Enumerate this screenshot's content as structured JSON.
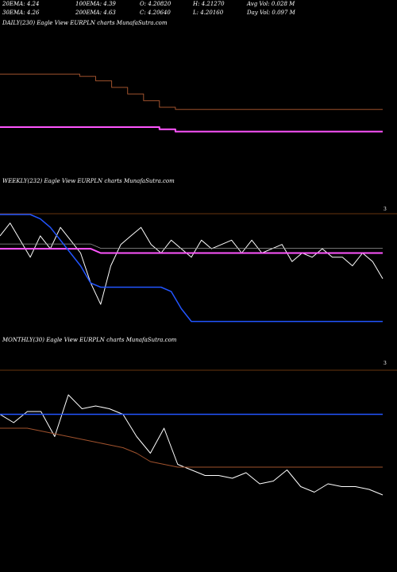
{
  "header": {
    "row1": [
      "20EMA: 4.24",
      "100EMA: 4.39",
      "O: 4.20820",
      "H: 4.21270",
      "Avg Vol: 0.028  M"
    ],
    "row2": [
      "30EMA: 4.26",
      "200EMA: 4.63",
      "C: 4.20640",
      "L: 4.20160",
      "Day Vol: 0.097 M"
    ]
  },
  "panels": {
    "daily_title": "DAILY(230) Eagle  View  EURPLN  charts MunafaSutra.com",
    "weekly_title": "WEEKLY(232) Eagle  View  EURPLN  charts MunafaSutra.com",
    "monthly_title": "MONTHLY(30) Eagle  View  EURPLN  charts MunafaSutra.com",
    "weekly_tick": "3",
    "monthly_tick": "3"
  },
  "colors": {
    "background": "#000000",
    "price": "#ffffff",
    "ema_magenta": "#ff55ff",
    "ema_blue": "#2255ff",
    "ema_brown": "#a0522d",
    "ema_gray": "#999999",
    "separator": "#8b4513"
  },
  "chart_data": [
    {
      "type": "line",
      "panel": "daily",
      "series": [
        {
          "role": "magenta-ema",
          "values": [
            4.39,
            4.39,
            4.39,
            4.39,
            4.39,
            4.39,
            4.39,
            4.39,
            4.39,
            4.39,
            4.38,
            4.37,
            4.37,
            4.37,
            4.37,
            4.37,
            4.37,
            4.37,
            4.37,
            4.37,
            4.37,
            4.37,
            4.37,
            4.37,
            4.37
          ]
        },
        {
          "role": "brown-ema",
          "values": [
            4.63,
            4.63,
            4.63,
            4.63,
            4.63,
            4.62,
            4.6,
            4.57,
            4.54,
            4.51,
            4.48,
            4.47,
            4.47,
            4.47,
            4.47,
            4.47,
            4.47,
            4.47,
            4.47,
            4.47,
            4.47,
            4.47,
            4.47,
            4.47,
            4.47
          ]
        }
      ]
    },
    {
      "type": "line",
      "panel": "weekly",
      "series": [
        {
          "role": "price",
          "values": [
            4.31,
            4.34,
            4.3,
            4.26,
            4.31,
            4.28,
            4.33,
            4.3,
            4.27,
            4.2,
            4.15,
            4.24,
            4.29,
            4.31,
            4.33,
            4.29,
            4.27,
            4.3,
            4.28,
            4.26,
            4.3,
            4.28,
            4.29,
            4.3,
            4.27,
            4.3,
            4.27,
            4.28,
            4.29,
            4.25,
            4.27,
            4.26,
            4.28,
            4.26,
            4.26,
            4.24,
            4.27,
            4.25,
            4.21
          ]
        },
        {
          "role": "magenta-ema",
          "values": [
            4.28,
            4.28,
            4.28,
            4.28,
            4.28,
            4.28,
            4.28,
            4.28,
            4.28,
            4.28,
            4.27,
            4.27,
            4.27,
            4.27,
            4.27,
            4.27,
            4.27,
            4.27,
            4.27,
            4.27,
            4.27,
            4.27,
            4.27,
            4.27,
            4.27,
            4.27,
            4.27,
            4.27,
            4.27,
            4.27,
            4.27,
            4.27,
            4.27,
            4.27,
            4.27,
            4.27,
            4.27,
            4.27,
            4.27
          ]
        },
        {
          "role": "blue-ema",
          "values": [
            4.36,
            4.36,
            4.36,
            4.36,
            4.35,
            4.33,
            4.3,
            4.27,
            4.24,
            4.2,
            4.19,
            4.19,
            4.19,
            4.19,
            4.19,
            4.19,
            4.19,
            4.18,
            4.14,
            4.11,
            4.11,
            4.11,
            4.11,
            4.11,
            4.11,
            4.11,
            4.11,
            4.11,
            4.11,
            4.11,
            4.11,
            4.11,
            4.11,
            4.11,
            4.11,
            4.11,
            4.11,
            4.11,
            4.11
          ]
        }
      ]
    },
    {
      "type": "line",
      "panel": "monthly",
      "series": [
        {
          "role": "price",
          "values": [
            4.29,
            4.26,
            4.3,
            4.3,
            4.21,
            4.36,
            4.31,
            4.32,
            4.31,
            4.29,
            4.21,
            4.15,
            4.24,
            4.11,
            4.09,
            4.07,
            4.07,
            4.06,
            4.08,
            4.04,
            4.05,
            4.09,
            4.03,
            4.01,
            4.04,
            4.03,
            4.03,
            4.02,
            4.0
          ]
        },
        {
          "role": "blue-ema",
          "values": [
            4.29,
            4.29,
            4.29,
            4.29,
            4.29,
            4.29,
            4.29,
            4.29,
            4.29,
            4.29,
            4.29,
            4.29,
            4.29,
            4.29,
            4.29,
            4.29,
            4.29,
            4.29,
            4.29,
            4.29,
            4.29,
            4.29,
            4.29,
            4.29,
            4.29,
            4.29,
            4.29,
            4.29,
            4.29
          ]
        },
        {
          "role": "brown-ema",
          "values": [
            4.24,
            4.24,
            4.24,
            4.23,
            4.22,
            4.21,
            4.2,
            4.19,
            4.18,
            4.17,
            4.15,
            4.12,
            4.11,
            4.1,
            4.1,
            4.1,
            4.1,
            4.1,
            4.1,
            4.1,
            4.1,
            4.1,
            4.1,
            4.1,
            4.1,
            4.1,
            4.1,
            4.1,
            4.1
          ]
        }
      ]
    }
  ]
}
